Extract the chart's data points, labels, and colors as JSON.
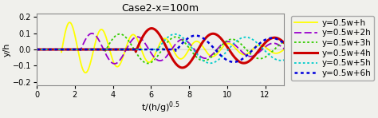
{
  "title": "Case2-x=100m",
  "xlabel": "t/(h/g)$^{0.5}$",
  "ylabel": "y/h",
  "xlim": [
    0,
    13
  ],
  "ylim": [
    -0.22,
    0.22
  ],
  "xticks": [
    0,
    2,
    4,
    6,
    8,
    10,
    12
  ],
  "yticks": [
    -0.2,
    -0.1,
    0.0,
    0.1,
    0.2
  ],
  "legend_labels": [
    "y=0.5w+h",
    "y=0.5w+2h",
    "y=0.5w+3h",
    "y=0.5w+4h",
    "y=0.5w+5h",
    "y=0.5w+6h"
  ],
  "line_colors": [
    "#ffff00",
    "#9900cc",
    "#33cc00",
    "#cc0000",
    "#00cccc",
    "#0000dd"
  ],
  "background_color": "#f0f0ec",
  "title_fontsize": 9,
  "label_fontsize": 8,
  "tick_fontsize": 7,
  "legend_fontsize": 7.5,
  "fig_width": 4.74,
  "fig_height": 1.48,
  "dpi": 100
}
